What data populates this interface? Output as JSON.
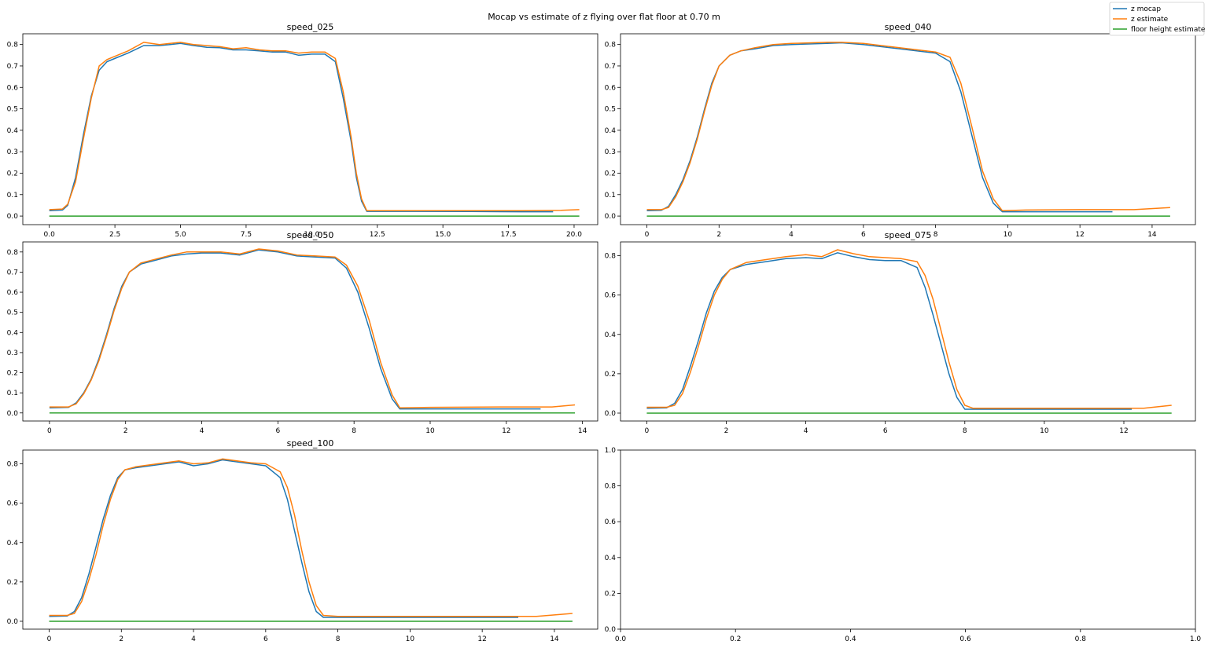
{
  "figure": {
    "title": "Mocap vs estimate of z flying over flat floor at 0.70 m",
    "legend": {
      "position": "top-right",
      "entries": [
        {
          "label": "z mocap",
          "color": "#1f77b4"
        },
        {
          "label": "z estimate",
          "color": "#ff7f0e"
        },
        {
          "label": "floor height estimate",
          "color": "#2ca02c"
        }
      ]
    }
  },
  "chart_data": [
    {
      "type": "line",
      "title": "speed_025",
      "xlim": [
        -1.01,
        20.9
      ],
      "ylim": [
        -0.04,
        0.85
      ],
      "xticks": [
        0,
        2.5,
        5,
        7.5,
        10,
        12.5,
        15,
        17.5,
        20
      ],
      "xtick_labels": [
        "0.0",
        "2.5",
        "5.0",
        "7.5",
        "10.0",
        "12.5",
        "15.0",
        "17.5",
        "20.0"
      ],
      "yticks": [
        0,
        0.1,
        0.2,
        0.3,
        0.4,
        0.5,
        0.6,
        0.7,
        0.8
      ],
      "ytick_labels": [
        "0.0",
        "0.1",
        "0.2",
        "0.3",
        "0.4",
        "0.5",
        "0.6",
        "0.7",
        "0.8"
      ],
      "series": [
        {
          "name": "z mocap",
          "color": "#1f77b4",
          "x": [
            0,
            0.5,
            0.7,
            1.0,
            1.3,
            1.6,
            1.9,
            2.2,
            2.6,
            3.0,
            3.6,
            4.2,
            4.6,
            5.0,
            5.5,
            6.0,
            6.5,
            7.0,
            7.5,
            8.0,
            8.5,
            9.0,
            9.5,
            10.0,
            10.5,
            10.9,
            11.2,
            11.5,
            11.7,
            11.9,
            12.1,
            12.5,
            14,
            16,
            18,
            19.2
          ],
          "y": [
            0.025,
            0.028,
            0.05,
            0.18,
            0.38,
            0.56,
            0.68,
            0.72,
            0.74,
            0.76,
            0.795,
            0.795,
            0.8,
            0.805,
            0.795,
            0.787,
            0.785,
            0.775,
            0.775,
            0.77,
            0.765,
            0.765,
            0.75,
            0.755,
            0.755,
            0.72,
            0.55,
            0.35,
            0.18,
            0.07,
            0.022,
            0.022,
            0.022,
            0.021,
            0.02,
            0.02
          ]
        },
        {
          "name": "z estimate",
          "color": "#ff7f0e",
          "x": [
            0,
            0.5,
            0.7,
            1.0,
            1.3,
            1.6,
            1.9,
            2.2,
            2.6,
            3.0,
            3.6,
            4.2,
            4.6,
            5.0,
            5.5,
            6.0,
            6.5,
            7.0,
            7.5,
            8.0,
            8.5,
            9.0,
            9.5,
            10.0,
            10.5,
            10.9,
            11.2,
            11.5,
            11.7,
            11.9,
            12.1,
            12.5,
            14,
            16,
            18,
            19.5,
            20.2
          ],
          "y": [
            0.03,
            0.033,
            0.055,
            0.16,
            0.36,
            0.55,
            0.7,
            0.73,
            0.75,
            0.77,
            0.81,
            0.8,
            0.805,
            0.81,
            0.8,
            0.795,
            0.79,
            0.78,
            0.785,
            0.775,
            0.77,
            0.77,
            0.76,
            0.765,
            0.765,
            0.735,
            0.58,
            0.37,
            0.2,
            0.08,
            0.025,
            0.025,
            0.025,
            0.025,
            0.025,
            0.027,
            0.03
          ]
        },
        {
          "name": "floor height estimate",
          "color": "#2ca02c",
          "x": [
            0,
            20.2
          ],
          "y": [
            0,
            0
          ]
        }
      ]
    },
    {
      "type": "line",
      "title": "speed_040",
      "xlim": [
        -0.73,
        15.2
      ],
      "ylim": [
        -0.04,
        0.85
      ],
      "xticks": [
        0,
        2,
        4,
        6,
        8,
        10,
        12,
        14
      ],
      "xtick_labels": [
        "0",
        "2",
        "4",
        "6",
        "8",
        "10",
        "12",
        "14"
      ],
      "yticks": [
        0,
        0.1,
        0.2,
        0.3,
        0.4,
        0.5,
        0.6,
        0.7,
        0.8
      ],
      "ytick_labels": [
        "0.0",
        "0.1",
        "0.2",
        "0.3",
        "0.4",
        "0.5",
        "0.6",
        "0.7",
        "0.8"
      ],
      "series": [
        {
          "name": "z mocap",
          "color": "#1f77b4",
          "x": [
            0,
            0.4,
            0.6,
            0.8,
            1.0,
            1.2,
            1.4,
            1.6,
            1.8,
            2.0,
            2.3,
            2.6,
            3.0,
            3.5,
            4.0,
            5.0,
            5.4,
            6.0,
            7.0,
            8.0,
            8.4,
            8.7,
            9.0,
            9.3,
            9.6,
            9.85,
            10.5,
            12,
            12.9
          ],
          "y": [
            0.025,
            0.027,
            0.045,
            0.1,
            0.17,
            0.26,
            0.37,
            0.5,
            0.62,
            0.7,
            0.75,
            0.77,
            0.78,
            0.795,
            0.8,
            0.805,
            0.808,
            0.8,
            0.78,
            0.76,
            0.72,
            0.58,
            0.38,
            0.18,
            0.06,
            0.02,
            0.02,
            0.02,
            0.02
          ]
        },
        {
          "name": "z estimate",
          "color": "#ff7f0e",
          "x": [
            0,
            0.4,
            0.6,
            0.8,
            1.0,
            1.2,
            1.4,
            1.6,
            1.8,
            2.0,
            2.3,
            2.6,
            3.0,
            3.5,
            4.0,
            5.0,
            5.4,
            6.0,
            7.0,
            8.0,
            8.4,
            8.7,
            9.0,
            9.3,
            9.6,
            9.85,
            10.5,
            12,
            13.5,
            14.5
          ],
          "y": [
            0.03,
            0.03,
            0.04,
            0.09,
            0.16,
            0.25,
            0.36,
            0.49,
            0.61,
            0.7,
            0.75,
            0.77,
            0.785,
            0.8,
            0.805,
            0.81,
            0.81,
            0.805,
            0.785,
            0.765,
            0.74,
            0.62,
            0.42,
            0.21,
            0.08,
            0.025,
            0.028,
            0.03,
            0.03,
            0.04
          ]
        },
        {
          "name": "floor height estimate",
          "color": "#2ca02c",
          "x": [
            0,
            14.5
          ],
          "y": [
            0,
            0
          ]
        }
      ]
    },
    {
      "type": "line",
      "title": "speed_050",
      "xlim": [
        -0.7,
        14.4
      ],
      "ylim": [
        -0.04,
        0.85
      ],
      "xticks": [
        0,
        2,
        4,
        6,
        8,
        10,
        12,
        14
      ],
      "xtick_labels": [
        "0",
        "2",
        "4",
        "6",
        "8",
        "10",
        "12",
        "14"
      ],
      "yticks": [
        0,
        0.1,
        0.2,
        0.3,
        0.4,
        0.5,
        0.6,
        0.7,
        0.8
      ],
      "ytick_labels": [
        "0.0",
        "0.1",
        "0.2",
        "0.3",
        "0.4",
        "0.5",
        "0.6",
        "0.7",
        "0.8"
      ],
      "series": [
        {
          "name": "z mocap",
          "color": "#1f77b4",
          "x": [
            0,
            0.5,
            0.7,
            0.9,
            1.1,
            1.3,
            1.5,
            1.7,
            1.9,
            2.1,
            2.4,
            2.8,
            3.2,
            3.6,
            4.0,
            4.5,
            5.0,
            5.5,
            6.0,
            6.5,
            7.0,
            7.5,
            7.8,
            8.1,
            8.4,
            8.7,
            9.0,
            9.2,
            10,
            12,
            12.9
          ],
          "y": [
            0.025,
            0.028,
            0.05,
            0.1,
            0.17,
            0.27,
            0.39,
            0.52,
            0.63,
            0.7,
            0.74,
            0.76,
            0.78,
            0.79,
            0.795,
            0.795,
            0.785,
            0.81,
            0.8,
            0.78,
            0.775,
            0.77,
            0.72,
            0.6,
            0.42,
            0.22,
            0.07,
            0.02,
            0.02,
            0.02,
            0.02
          ]
        },
        {
          "name": "z estimate",
          "color": "#ff7f0e",
          "x": [
            0,
            0.5,
            0.7,
            0.9,
            1.1,
            1.3,
            1.5,
            1.7,
            1.9,
            2.1,
            2.4,
            2.8,
            3.2,
            3.6,
            4.0,
            4.5,
            5.0,
            5.5,
            6.0,
            6.5,
            7.0,
            7.5,
            7.8,
            8.1,
            8.4,
            8.7,
            9.0,
            9.2,
            10,
            12,
            13.2,
            13.8
          ],
          "y": [
            0.03,
            0.03,
            0.045,
            0.095,
            0.165,
            0.26,
            0.38,
            0.51,
            0.62,
            0.7,
            0.745,
            0.765,
            0.785,
            0.8,
            0.8,
            0.8,
            0.79,
            0.815,
            0.805,
            0.785,
            0.78,
            0.775,
            0.735,
            0.63,
            0.46,
            0.25,
            0.09,
            0.025,
            0.028,
            0.03,
            0.03,
            0.04
          ]
        },
        {
          "name": "floor height estimate",
          "color": "#2ca02c",
          "x": [
            0,
            13.8
          ],
          "y": [
            0,
            0
          ]
        }
      ]
    },
    {
      "type": "line",
      "title": "speed_075",
      "xlim": [
        -0.66,
        13.8
      ],
      "ylim": [
        -0.04,
        0.87
      ],
      "xticks": [
        0,
        2,
        4,
        6,
        8,
        10,
        12
      ],
      "xtick_labels": [
        "0",
        "2",
        "4",
        "6",
        "8",
        "10",
        "12"
      ],
      "yticks": [
        0,
        0.2,
        0.4,
        0.6,
        0.8
      ],
      "ytick_labels": [
        "0.0",
        "0.2",
        "0.4",
        "0.6",
        "0.8"
      ],
      "series": [
        {
          "name": "z mocap",
          "color": "#1f77b4",
          "x": [
            0,
            0.5,
            0.7,
            0.9,
            1.1,
            1.3,
            1.5,
            1.7,
            1.9,
            2.1,
            2.5,
            3.0,
            3.5,
            4.0,
            4.4,
            4.8,
            5.2,
            5.6,
            6.0,
            6.4,
            6.8,
            7.0,
            7.2,
            7.4,
            7.6,
            7.8,
            8.0,
            8.2,
            9,
            11,
            12.2
          ],
          "y": [
            0.025,
            0.027,
            0.05,
            0.12,
            0.24,
            0.37,
            0.51,
            0.62,
            0.69,
            0.73,
            0.755,
            0.77,
            0.785,
            0.79,
            0.785,
            0.815,
            0.795,
            0.78,
            0.775,
            0.775,
            0.74,
            0.64,
            0.5,
            0.35,
            0.2,
            0.08,
            0.02,
            0.02,
            0.02,
            0.02,
            0.02
          ]
        },
        {
          "name": "z estimate",
          "color": "#ff7f0e",
          "x": [
            0,
            0.5,
            0.7,
            0.9,
            1.1,
            1.3,
            1.5,
            1.7,
            1.9,
            2.1,
            2.5,
            3.0,
            3.5,
            4.0,
            4.4,
            4.8,
            5.2,
            5.6,
            6.0,
            6.4,
            6.8,
            7.0,
            7.2,
            7.4,
            7.6,
            7.8,
            8.0,
            8.2,
            9,
            11,
            12.5,
            13.2
          ],
          "y": [
            0.03,
            0.03,
            0.04,
            0.1,
            0.21,
            0.34,
            0.48,
            0.6,
            0.68,
            0.73,
            0.765,
            0.78,
            0.795,
            0.805,
            0.795,
            0.83,
            0.81,
            0.795,
            0.79,
            0.785,
            0.77,
            0.7,
            0.58,
            0.42,
            0.26,
            0.12,
            0.04,
            0.025,
            0.025,
            0.025,
            0.025,
            0.04
          ]
        },
        {
          "name": "floor height estimate",
          "color": "#2ca02c",
          "x": [
            0,
            13.2
          ],
          "y": [
            0,
            0
          ]
        }
      ]
    },
    {
      "type": "line",
      "title": "speed_100",
      "xlim": [
        -0.73,
        15.2
      ],
      "ylim": [
        -0.04,
        0.87
      ],
      "xticks": [
        0,
        2,
        4,
        6,
        8,
        10,
        12,
        14
      ],
      "xtick_labels": [
        "0",
        "2",
        "4",
        "6",
        "8",
        "10",
        "12",
        "14"
      ],
      "yticks": [
        0,
        0.2,
        0.4,
        0.6,
        0.8
      ],
      "ytick_labels": [
        "0.0",
        "0.2",
        "0.4",
        "0.6",
        "0.8"
      ],
      "series": [
        {
          "name": "z mocap",
          "color": "#1f77b4",
          "x": [
            0,
            0.5,
            0.7,
            0.9,
            1.1,
            1.3,
            1.5,
            1.7,
            1.9,
            2.1,
            2.4,
            2.8,
            3.2,
            3.6,
            4.0,
            4.4,
            4.8,
            5.2,
            5.6,
            6.0,
            6.4,
            6.6,
            6.8,
            7.0,
            7.2,
            7.4,
            7.6,
            8,
            10,
            12,
            13.0
          ],
          "y": [
            0.025,
            0.027,
            0.05,
            0.12,
            0.24,
            0.38,
            0.52,
            0.64,
            0.73,
            0.77,
            0.78,
            0.79,
            0.8,
            0.81,
            0.79,
            0.8,
            0.82,
            0.81,
            0.8,
            0.79,
            0.73,
            0.62,
            0.46,
            0.3,
            0.15,
            0.05,
            0.02,
            0.02,
            0.02,
            0.02,
            0.02
          ]
        },
        {
          "name": "z estimate",
          "color": "#ff7f0e",
          "x": [
            0,
            0.5,
            0.7,
            0.9,
            1.1,
            1.3,
            1.5,
            1.7,
            1.9,
            2.1,
            2.4,
            2.8,
            3.2,
            3.6,
            4.0,
            4.4,
            4.8,
            5.2,
            5.6,
            6.0,
            6.4,
            6.6,
            6.8,
            7.0,
            7.2,
            7.4,
            7.6,
            8,
            10,
            12,
            13.5,
            14.5
          ],
          "y": [
            0.03,
            0.03,
            0.04,
            0.1,
            0.21,
            0.34,
            0.49,
            0.62,
            0.72,
            0.77,
            0.785,
            0.795,
            0.805,
            0.815,
            0.8,
            0.805,
            0.825,
            0.815,
            0.805,
            0.8,
            0.76,
            0.68,
            0.54,
            0.36,
            0.2,
            0.08,
            0.03,
            0.025,
            0.025,
            0.025,
            0.025,
            0.04
          ]
        },
        {
          "name": "floor height estimate",
          "color": "#2ca02c",
          "x": [
            0,
            14.5
          ],
          "y": [
            0,
            0
          ]
        }
      ]
    },
    {
      "type": "line",
      "title": "",
      "xlim": [
        0,
        1
      ],
      "ylim": [
        0,
        1
      ],
      "xticks": [
        0,
        0.2,
        0.4,
        0.6,
        0.8,
        1.0
      ],
      "xtick_labels": [
        "0.0",
        "0.2",
        "0.4",
        "0.6",
        "0.8",
        "1.0"
      ],
      "yticks": [
        0,
        0.2,
        0.4,
        0.6,
        0.8,
        1.0
      ],
      "ytick_labels": [
        "0.0",
        "0.2",
        "0.4",
        "0.6",
        "0.8",
        "1.0"
      ],
      "series": []
    }
  ]
}
